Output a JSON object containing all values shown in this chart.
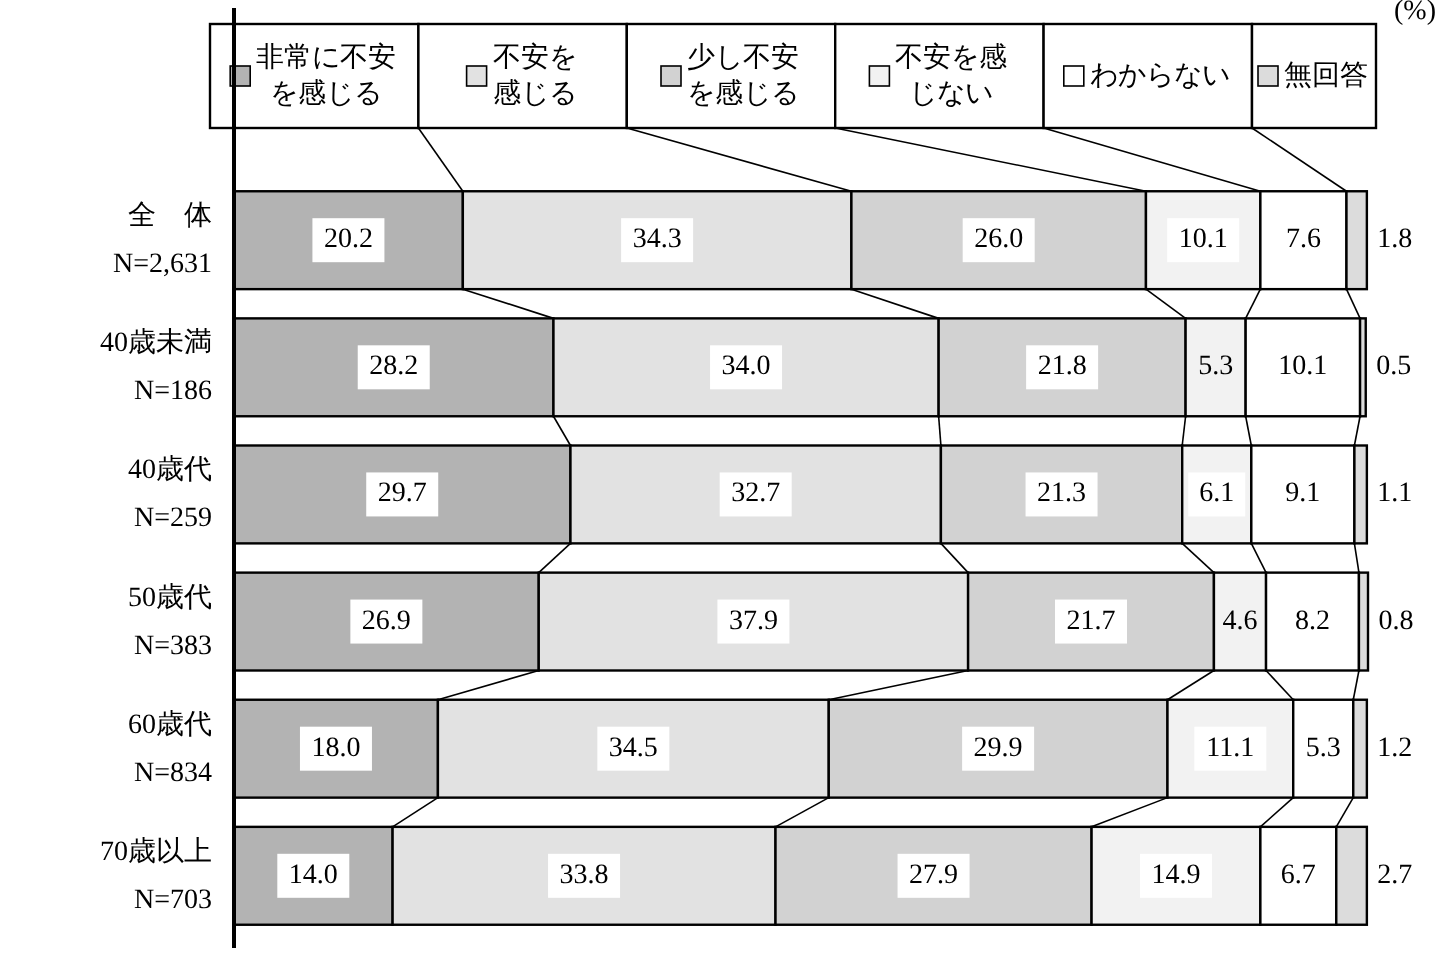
{
  "chart_data": {
    "type": "bar",
    "orientation": "horizontal",
    "stacked": true,
    "legend": "top",
    "annotations": [
      "(%)"
    ],
    "categories": [
      "全　体\nN=2,631",
      "40歳未満\nN=186",
      "40歳代\nN=259",
      "50歳代\nN=383",
      "60歳代\nN=834",
      "70歳以上\nN=703"
    ],
    "series": [
      {
        "name": "非常に不安を感じる",
        "color": "#b3b3b3",
        "values": [
          20.2,
          28.2,
          29.7,
          26.9,
          18.0,
          14.0
        ],
        "value_labels": [
          "20.2",
          "28.2",
          "29.7",
          "26.9",
          "18.0",
          "14.0"
        ]
      },
      {
        "name": "不安を感じる",
        "color": "#e2e2e2",
        "values": [
          34.3,
          34.0,
          32.7,
          37.9,
          34.5,
          33.8
        ],
        "value_labels": [
          "34.3",
          "34.0",
          "32.7",
          "37.9",
          "34.5",
          "33.8"
        ]
      },
      {
        "name": "少し不安を感じる",
        "color": "#d2d2d2",
        "values": [
          26.0,
          21.8,
          21.3,
          21.7,
          29.9,
          27.9
        ],
        "value_labels": [
          "26.0",
          "21.8",
          "21.3",
          "21.7",
          "29.9",
          "27.9"
        ]
      },
      {
        "name": "不安を感じない",
        "color": "#f2f2f2",
        "values": [
          10.1,
          5.3,
          6.1,
          4.6,
          11.1,
          14.9
        ],
        "value_labels": [
          "10.1",
          "5.3",
          "6.1",
          "4.6",
          "11.1",
          "14.9"
        ]
      },
      {
        "name": "わからない",
        "color": "#ffffff",
        "values": [
          7.6,
          10.1,
          9.1,
          8.2,
          5.3,
          6.7
        ],
        "value_labels": [
          "7.6",
          "10.1",
          "9.1",
          "8.2",
          "5.3",
          "6.7"
        ]
      },
      {
        "name": "無回答",
        "color": "#dcdcdc",
        "values": [
          1.8,
          0.5,
          1.1,
          0.8,
          1.2,
          2.7
        ],
        "value_labels": [
          "1.8",
          "0.5",
          "1.1",
          "0.8",
          "1.2",
          "2.7"
        ]
      }
    ]
  }
}
